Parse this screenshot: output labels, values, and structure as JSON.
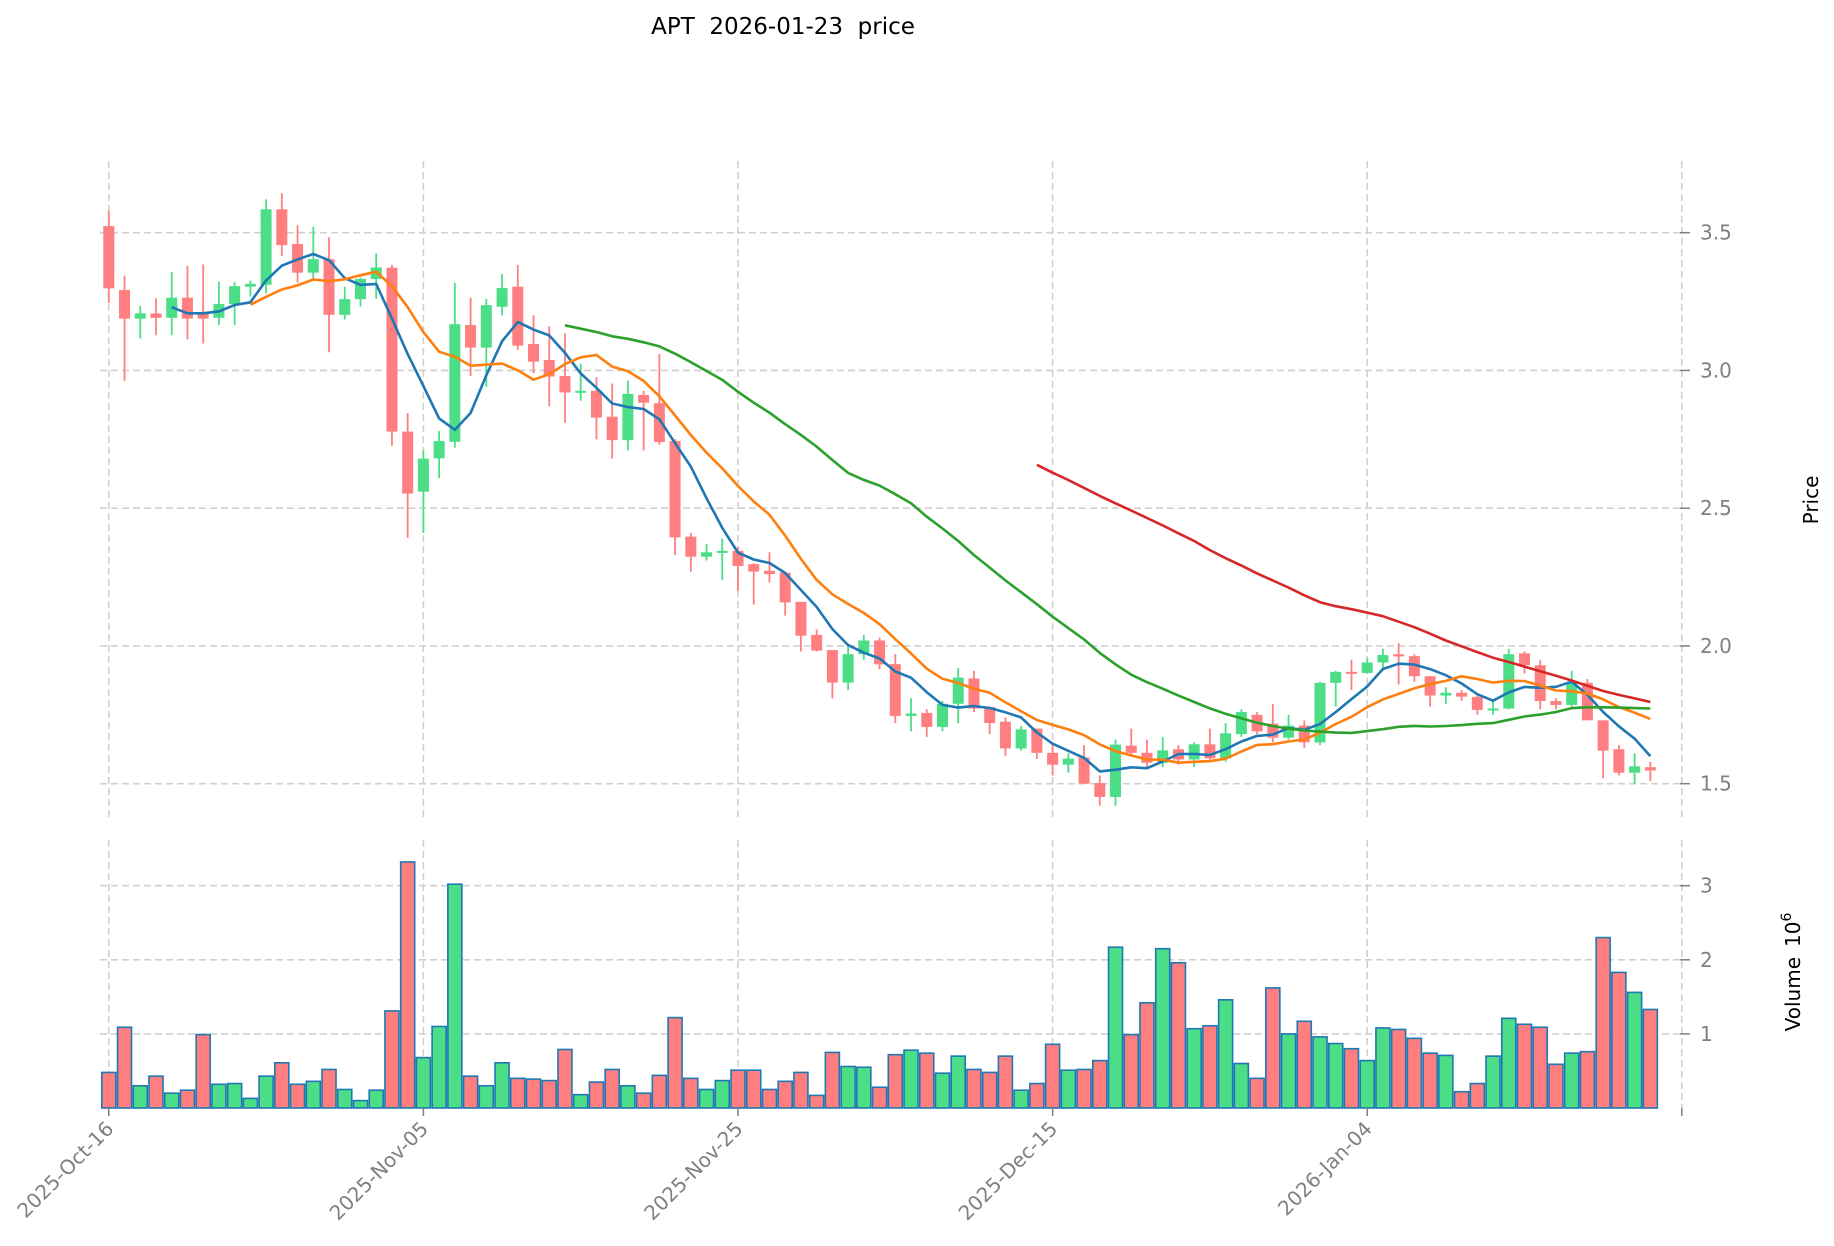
{
  "chart_data": {
    "type": "candlestick",
    "title": "APT  2026-01-23  price",
    "ylabel": "Price",
    "volume_label": "Volume",
    "volume_exponent_base": "10",
    "volume_exponent": "6",
    "ylim": [
      1.33,
      3.75
    ],
    "volume_ylim": [
      0,
      3.4
    ],
    "y_ticks": [
      {
        "value": 1.5,
        "label": "1.5"
      },
      {
        "value": 2.0,
        "label": "2.0"
      },
      {
        "value": 2.5,
        "label": "2.5"
      },
      {
        "value": 3.0,
        "label": "3.0"
      },
      {
        "value": 3.5,
        "label": "3.5"
      }
    ],
    "volume_ticks": [
      {
        "value": 1,
        "label": "1"
      },
      {
        "value": 2,
        "label": "2"
      },
      {
        "value": 3,
        "label": "3"
      }
    ],
    "x_ticks": [
      {
        "index": 0,
        "label": "2025-Oct-16"
      },
      {
        "index": 20,
        "label": "2025-Nov-05"
      },
      {
        "index": 40,
        "label": "2025-Nov-25"
      },
      {
        "index": 60,
        "label": "2025-Dec-15"
      },
      {
        "index": 80,
        "label": "2026-Jan-04"
      },
      {
        "index": 100,
        "label": ""
      }
    ],
    "colors": {
      "up": "#4bde86",
      "down": "#ff7f80",
      "volume_edge": "#1f77b4",
      "grid": "#d0d0d0"
    },
    "moving_averages": [
      {
        "period": 5,
        "color": "#1f77b4"
      },
      {
        "period": 10,
        "color": "#ff7f0e"
      },
      {
        "period": 30,
        "color": "#2ca02c"
      },
      {
        "period": 60,
        "color": "#d62728"
      }
    ],
    "open": [
      3.524,
      3.292,
      3.188,
      3.207,
      3.191,
      3.264,
      3.21,
      3.191,
      3.241,
      3.304,
      3.311,
      3.585,
      3.459,
      3.355,
      3.404,
      3.202,
      3.259,
      3.332,
      3.373,
      2.778,
      2.56,
      2.681,
      2.741,
      3.165,
      3.083,
      3.231,
      3.304,
      3.096,
      3.038,
      2.98,
      2.92,
      2.926,
      2.832,
      2.747,
      2.911,
      2.881,
      2.744,
      2.397,
      2.324,
      2.34,
      2.345,
      2.297,
      2.273,
      2.266,
      2.16,
      2.04,
      1.985,
      1.867,
      1.97,
      2.02,
      1.934,
      1.746,
      1.757,
      1.706,
      1.79,
      1.882,
      1.778,
      1.725,
      1.628,
      1.7,
      1.612,
      1.569,
      1.595,
      1.502,
      1.452,
      1.638,
      1.612,
      1.576,
      1.625,
      1.588,
      1.643,
      1.592,
      1.68,
      1.75,
      1.718,
      1.667,
      1.711,
      1.65,
      1.866,
      1.906,
      1.902,
      1.94,
      1.97,
      1.963,
      1.89,
      1.82,
      1.83,
      1.815,
      1.768,
      1.773,
      1.973,
      1.93,
      1.8,
      1.786,
      1.866,
      1.73,
      1.625,
      1.54,
      1.56
    ],
    "high": [
      3.58,
      3.344,
      3.234,
      3.262,
      3.358,
      3.38,
      3.385,
      3.322,
      3.32,
      3.326,
      3.621,
      3.643,
      3.527,
      3.521,
      3.484,
      3.304,
      3.338,
      3.425,
      3.383,
      2.845,
      2.71,
      2.78,
      3.318,
      3.264,
      3.26,
      3.35,
      3.383,
      3.2,
      3.16,
      3.135,
      3.024,
      2.975,
      2.952,
      2.963,
      2.926,
      3.06,
      2.75,
      2.41,
      2.37,
      2.39,
      2.36,
      2.3,
      2.34,
      2.27,
      2.16,
      2.06,
      1.985,
      2.0,
      2.04,
      2.03,
      1.97,
      1.81,
      1.77,
      1.8,
      1.92,
      1.91,
      1.78,
      1.74,
      1.71,
      1.7,
      1.65,
      1.61,
      1.64,
      1.53,
      1.66,
      1.7,
      1.66,
      1.67,
      1.64,
      1.65,
      1.7,
      1.72,
      1.77,
      1.76,
      1.79,
      1.75,
      1.73,
      1.87,
      1.91,
      1.95,
      1.955,
      1.99,
      2.01,
      1.97,
      1.89,
      1.85,
      1.84,
      1.82,
      1.8,
      1.99,
      1.98,
      1.95,
      1.81,
      1.91,
      1.88,
      1.73,
      1.64,
      1.61,
      1.58
    ],
    "low": [
      3.245,
      2.962,
      3.116,
      3.128,
      3.128,
      3.113,
      3.098,
      3.165,
      3.165,
      3.268,
      3.28,
      3.416,
      3.319,
      3.327,
      3.066,
      3.185,
      3.232,
      3.26,
      2.726,
      2.392,
      2.41,
      2.61,
      2.72,
      2.98,
      2.94,
      3.2,
      3.075,
      2.99,
      2.87,
      2.81,
      2.89,
      2.75,
      2.68,
      2.71,
      2.71,
      2.73,
      2.33,
      2.27,
      2.31,
      2.24,
      2.2,
      2.15,
      2.23,
      2.11,
      1.98,
      1.98,
      1.81,
      1.84,
      1.95,
      1.915,
      1.72,
      1.69,
      1.67,
      1.69,
      1.72,
      1.76,
      1.68,
      1.6,
      1.62,
      1.59,
      1.53,
      1.54,
      1.5,
      1.42,
      1.42,
      1.6,
      1.56,
      1.56,
      1.57,
      1.56,
      1.58,
      1.58,
      1.67,
      1.68,
      1.65,
      1.66,
      1.63,
      1.64,
      1.78,
      1.84,
      1.9,
      1.91,
      1.86,
      1.87,
      1.78,
      1.79,
      1.8,
      1.75,
      1.75,
      1.77,
      1.9,
      1.77,
      1.77,
      1.78,
      1.73,
      1.52,
      1.53,
      1.5,
      1.51
    ],
    "close": [
      3.298,
      3.188,
      3.207,
      3.191,
      3.264,
      3.188,
      3.188,
      3.241,
      3.306,
      3.314,
      3.585,
      3.455,
      3.355,
      3.404,
      3.202,
      3.259,
      3.332,
      3.374,
      2.778,
      2.553,
      2.68,
      2.744,
      3.168,
      3.083,
      3.237,
      3.299,
      3.09,
      3.032,
      2.978,
      2.92,
      2.926,
      2.829,
      2.747,
      2.915,
      2.883,
      2.74,
      2.394,
      2.324,
      2.34,
      2.345,
      2.29,
      2.27,
      2.261,
      2.158,
      2.037,
      1.983,
      1.867,
      1.97,
      2.02,
      1.933,
      1.746,
      1.755,
      1.706,
      1.79,
      1.885,
      1.773,
      1.72,
      1.628,
      1.697,
      1.612,
      1.569,
      1.591,
      1.5,
      1.452,
      1.642,
      1.612,
      1.576,
      1.621,
      1.588,
      1.643,
      1.592,
      1.683,
      1.76,
      1.69,
      1.667,
      1.711,
      1.65,
      1.866,
      1.906,
      1.902,
      1.94,
      1.967,
      1.962,
      1.89,
      1.82,
      1.83,
      1.816,
      1.768,
      1.773,
      1.97,
      1.93,
      1.8,
      1.786,
      1.866,
      1.73,
      1.62,
      1.54,
      1.563,
      1.548
    ],
    "volume": [
      0.48,
      1.09,
      0.3,
      0.43,
      0.2,
      0.24,
      0.99,
      0.32,
      0.33,
      0.13,
      0.43,
      0.61,
      0.32,
      0.36,
      0.52,
      0.25,
      0.1,
      0.24,
      1.31,
      3.32,
      0.68,
      1.1,
      3.02,
      0.43,
      0.3,
      0.61,
      0.4,
      0.39,
      0.37,
      0.79,
      0.18,
      0.35,
      0.52,
      0.3,
      0.2,
      0.44,
      1.22,
      0.4,
      0.25,
      0.37,
      0.51,
      0.51,
      0.25,
      0.36,
      0.48,
      0.17,
      0.75,
      0.56,
      0.55,
      0.28,
      0.72,
      0.78,
      0.74,
      0.47,
      0.7,
      0.52,
      0.48,
      0.7,
      0.24,
      0.33,
      0.86,
      0.51,
      0.52,
      0.64,
      2.17,
      0.99,
      1.42,
      2.15,
      1.96,
      1.07,
      1.11,
      1.46,
      0.6,
      0.4,
      1.62,
      1.0,
      1.17,
      0.96,
      0.87,
      0.8,
      0.64,
      1.08,
      1.06,
      0.94,
      0.74,
      0.71,
      0.22,
      0.33,
      0.7,
      1.21,
      1.13,
      1.09,
      0.59,
      0.74,
      0.76,
      2.3,
      1.83,
      1.56,
      1.33
    ]
  }
}
